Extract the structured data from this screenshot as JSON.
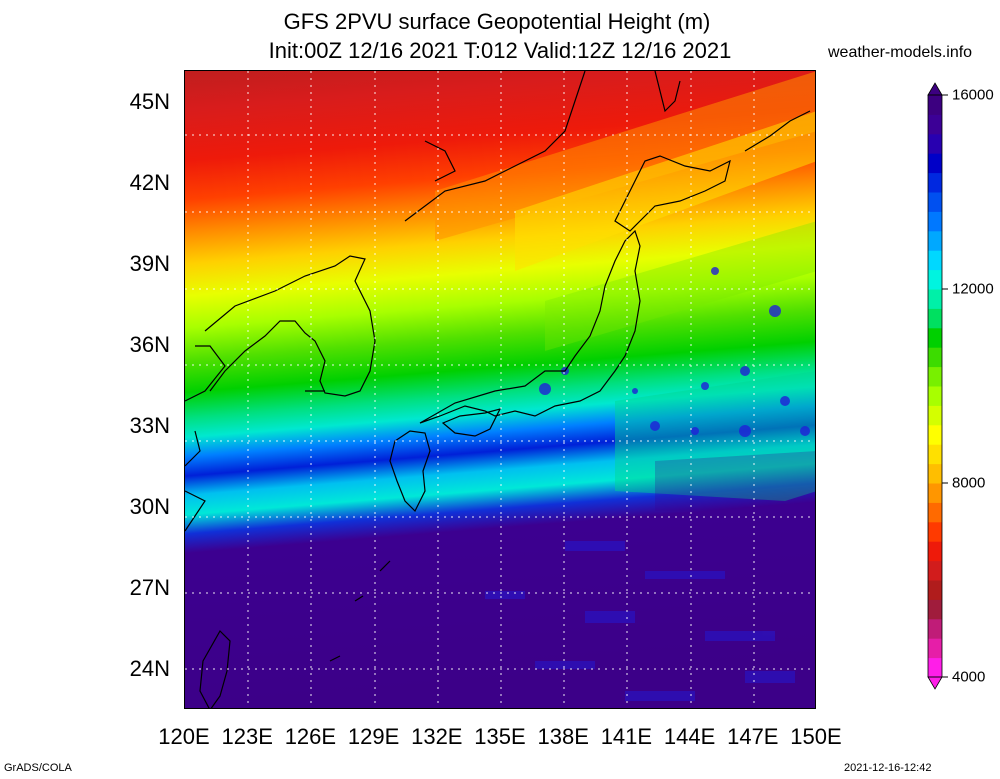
{
  "title_line1": "GFS 2PVU surface Geopotential Height (m)",
  "title_line2": "Init:00Z 12/16 2021 T:012 Valid:12Z 12/16 2021",
  "site": "weather-models.info",
  "footer_left": "GrADS/COLA",
  "footer_right": "2021-12-16-12:42",
  "lat_labels": [
    {
      "text": "45N",
      "lat": 45
    },
    {
      "text": "42N",
      "lat": 42
    },
    {
      "text": "39N",
      "lat": 39
    },
    {
      "text": "36N",
      "lat": 36
    },
    {
      "text": "33N",
      "lat": 33
    },
    {
      "text": "30N",
      "lat": 30
    },
    {
      "text": "27N",
      "lat": 27
    },
    {
      "text": "24N",
      "lat": 24
    }
  ],
  "lon_labels": [
    {
      "text": "120E",
      "lon": 120
    },
    {
      "text": "123E",
      "lon": 123
    },
    {
      "text": "126E",
      "lon": 126
    },
    {
      "text": "129E",
      "lon": 129
    },
    {
      "text": "132E",
      "lon": 132
    },
    {
      "text": "135E",
      "lon": 135
    },
    {
      "text": "138E",
      "lon": 138
    },
    {
      "text": "141E",
      "lon": 141
    },
    {
      "text": "144E",
      "lon": 144
    },
    {
      "text": "147E",
      "lon": 147
    },
    {
      "text": "150E",
      "lon": 150
    }
  ],
  "colorbar": {
    "labels": [
      {
        "text": "16000",
        "value": 16000
      },
      {
        "text": "12000",
        "value": 12000
      },
      {
        "text": "8000",
        "value": 8000
      },
      {
        "text": "4000",
        "value": 4000
      }
    ],
    "colors": [
      "#ff1ee8",
      "#e61ea8",
      "#c01c78",
      "#a01c3c",
      "#b01c1c",
      "#d21c1c",
      "#ee1a0a",
      "#ff3a00",
      "#ff6a00",
      "#ff9600",
      "#ffbe00",
      "#ffe000",
      "#ffff00",
      "#d4ff00",
      "#a8ff00",
      "#78f000",
      "#3cdc00",
      "#00d000",
      "#00e060",
      "#00f0a8",
      "#00f4e0",
      "#00d8ff",
      "#00a8ff",
      "#0078ff",
      "#0050f0",
      "#0028e0",
      "#0000c8",
      "#2800b0",
      "#3c0096",
      "#3c0080"
    ]
  }
}
